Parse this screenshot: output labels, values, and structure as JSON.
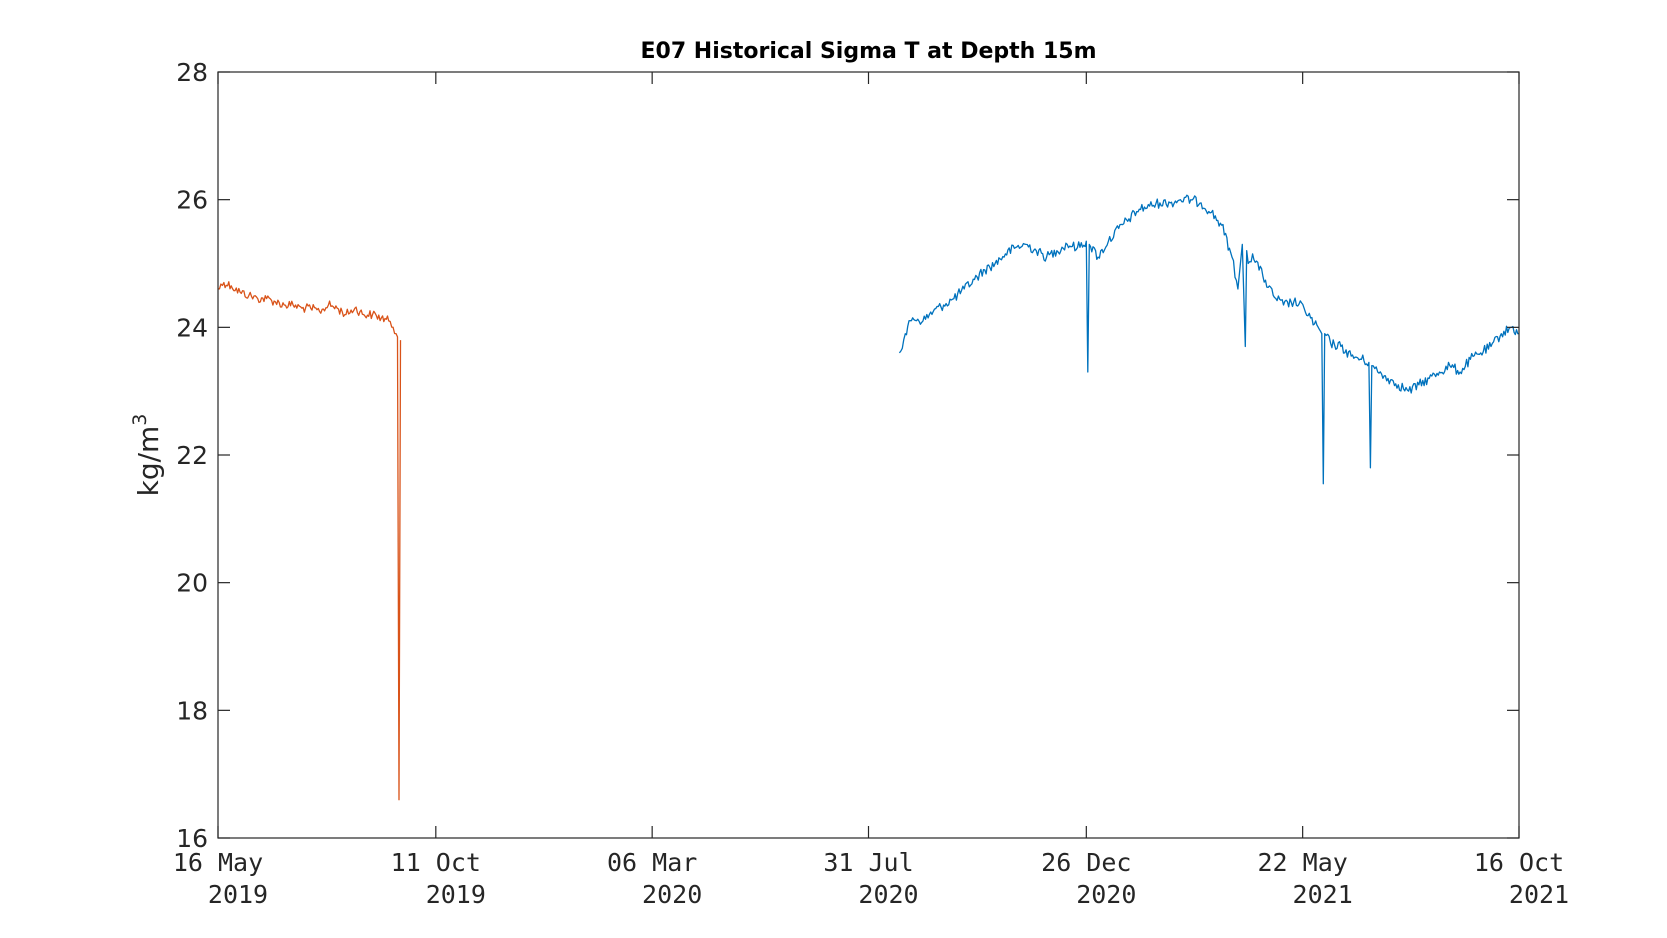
{
  "chart_data": {
    "type": "line",
    "title": "E07 Historical Sigma T at Depth 15m",
    "ylabel_main": "kg/m",
    "ylabel_sup": "3",
    "xlabel": "",
    "xlim": [
      "2019-05-16",
      "2021-10-16"
    ],
    "ylim": [
      16,
      28
    ],
    "yticks": [
      16,
      18,
      20,
      22,
      24,
      26,
      28
    ],
    "xticks": [
      {
        "date": "2019-05-16",
        "line1": "16 May",
        "line2": "2019"
      },
      {
        "date": "2019-10-11",
        "line1": "11 Oct",
        "line2": "2019"
      },
      {
        "date": "2020-03-06",
        "line1": "06 Mar",
        "line2": "2020"
      },
      {
        "date": "2020-07-31",
        "line1": "31 Jul",
        "line2": "2020"
      },
      {
        "date": "2020-12-26",
        "line1": "26 Dec",
        "line2": "2020"
      },
      {
        "date": "2021-05-22",
        "line1": "22 May",
        "line2": "2021"
      },
      {
        "date": "2021-10-16",
        "line1": "16 Oct",
        "line2": "2021"
      }
    ],
    "grid": false,
    "legend": false,
    "series": [
      {
        "color": "#D95319",
        "x": [
          "2019-05-16",
          "2019-05-20",
          "2019-05-25",
          "2019-05-31",
          "2019-06-06",
          "2019-06-12",
          "2019-06-18",
          "2019-06-24",
          "2019-06-30",
          "2019-07-06",
          "2019-07-12",
          "2019-07-18",
          "2019-07-24",
          "2019-07-30",
          "2019-08-05",
          "2019-08-11",
          "2019-08-17",
          "2019-08-23",
          "2019-08-29",
          "2019-09-04",
          "2019-09-09",
          "2019-09-12",
          "2019-09-14",
          "2019-09-15",
          "2019-09-16",
          "2019-09-17"
        ],
        "y": [
          24.6,
          24.7,
          24.65,
          24.55,
          24.5,
          24.45,
          24.45,
          24.4,
          24.35,
          24.35,
          24.3,
          24.3,
          24.25,
          24.35,
          24.3,
          24.2,
          24.3,
          24.2,
          24.2,
          24.15,
          24.1,
          24.0,
          23.9,
          23.85,
          16.6,
          23.8
        ]
      },
      {
        "color": "#0072BD",
        "x": [
          "2020-08-21",
          "2020-08-25",
          "2020-08-30",
          "2020-09-06",
          "2020-09-13",
          "2020-09-20",
          "2020-09-27",
          "2020-10-04",
          "2020-10-11",
          "2020-10-18",
          "2020-10-25",
          "2020-11-01",
          "2020-11-08",
          "2020-11-15",
          "2020-11-22",
          "2020-11-29",
          "2020-12-06",
          "2020-12-13",
          "2020-12-20",
          "2020-12-26",
          "2020-12-27",
          "2020-12-28",
          "2021-01-03",
          "2021-01-10",
          "2021-01-17",
          "2021-01-24",
          "2021-01-31",
          "2021-02-07",
          "2021-02-14",
          "2021-02-21",
          "2021-02-28",
          "2021-03-07",
          "2021-03-14",
          "2021-03-21",
          "2021-03-28",
          "2021-04-04",
          "2021-04-08",
          "2021-04-11",
          "2021-04-13",
          "2021-04-14",
          "2021-04-15",
          "2021-04-18",
          "2021-04-25",
          "2021-05-02",
          "2021-05-09",
          "2021-05-16",
          "2021-05-23",
          "2021-05-30",
          "2021-06-04",
          "2021-06-05",
          "2021-06-06",
          "2021-06-10",
          "2021-06-17",
          "2021-06-24",
          "2021-07-01",
          "2021-07-06",
          "2021-07-07",
          "2021-07-08",
          "2021-07-12",
          "2021-07-19",
          "2021-07-26",
          "2021-08-02",
          "2021-08-09",
          "2021-08-16",
          "2021-08-23",
          "2021-08-30",
          "2021-09-06",
          "2021-09-13",
          "2021-09-20",
          "2021-09-27",
          "2021-10-04",
          "2021-10-11",
          "2021-10-16"
        ],
        "y": [
          23.6,
          23.9,
          24.15,
          24.1,
          24.25,
          24.35,
          24.45,
          24.6,
          24.75,
          24.9,
          25.0,
          25.15,
          25.25,
          25.3,
          25.2,
          25.1,
          25.2,
          25.3,
          25.25,
          25.35,
          23.3,
          25.3,
          25.1,
          25.35,
          25.55,
          25.7,
          25.85,
          25.9,
          25.95,
          25.95,
          26.0,
          26.0,
          25.95,
          25.8,
          25.6,
          25.1,
          24.6,
          25.3,
          23.7,
          25.2,
          25.0,
          25.15,
          24.8,
          24.5,
          24.35,
          24.4,
          24.3,
          24.05,
          23.9,
          21.55,
          23.9,
          23.75,
          23.7,
          23.55,
          23.5,
          23.45,
          21.8,
          23.4,
          23.3,
          23.2,
          23.1,
          23.0,
          23.1,
          23.2,
          23.3,
          23.4,
          23.3,
          23.5,
          23.6,
          23.7,
          23.9,
          24.0,
          23.9
        ]
      }
    ]
  }
}
